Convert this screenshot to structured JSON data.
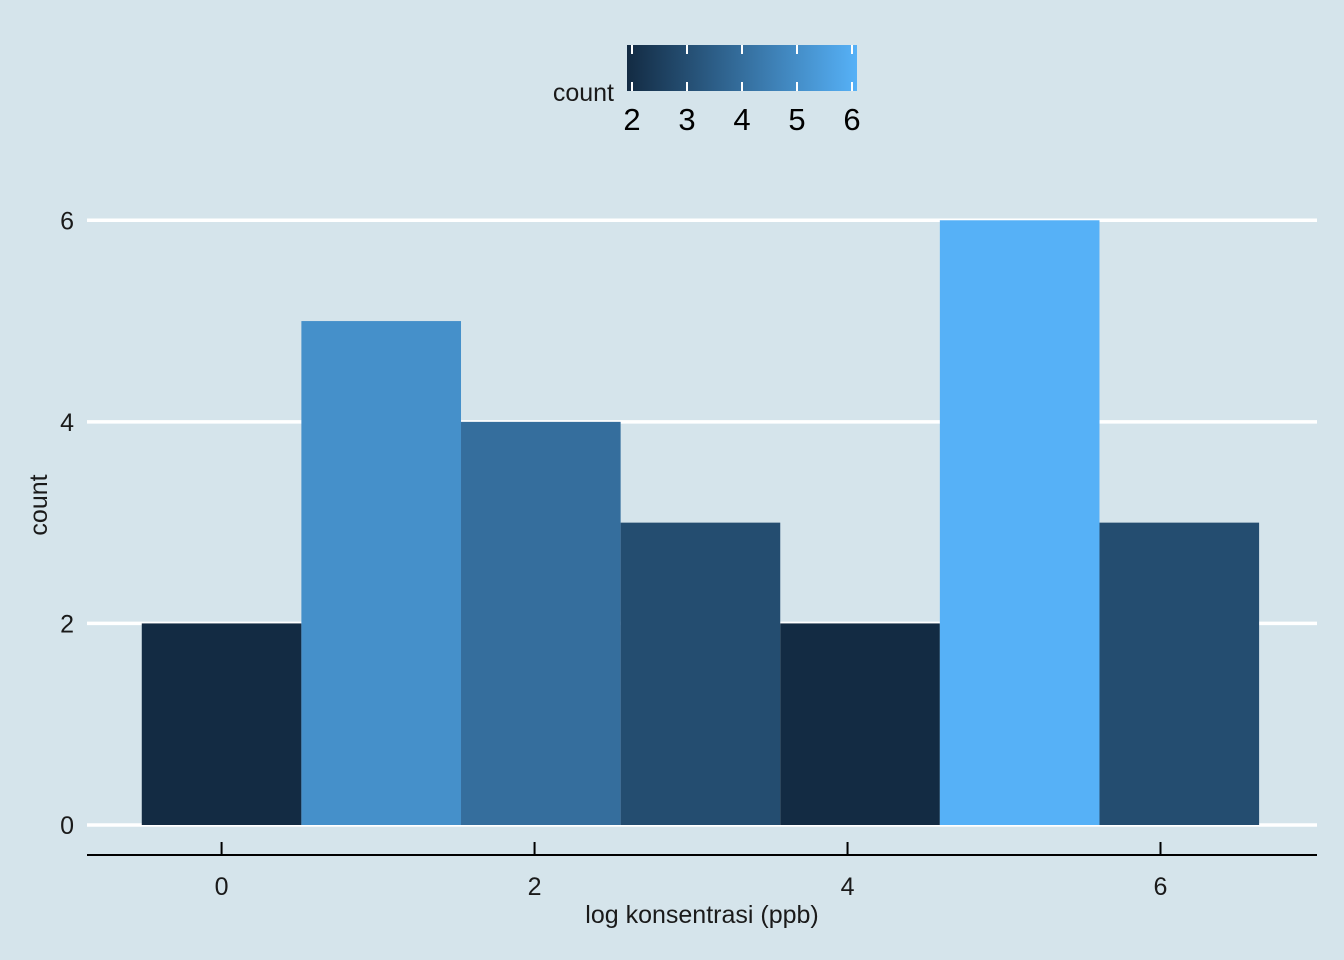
{
  "chart_data": {
    "type": "bar",
    "title": "",
    "xlabel": "log konsentrasi (ppb)",
    "ylabel": "count",
    "bin_width": 1.02,
    "bins": [
      {
        "center": 0.0,
        "count": 2
      },
      {
        "center": 1.02,
        "count": 5
      },
      {
        "center": 2.04,
        "count": 4
      },
      {
        "center": 3.06,
        "count": 3
      },
      {
        "center": 4.08,
        "count": 2
      },
      {
        "center": 5.1,
        "count": 6
      },
      {
        "center": 6.12,
        "count": 3
      }
    ],
    "xlim": [
      -0.86,
      7.0
    ],
    "ylim": [
      0,
      6.35
    ],
    "x_ticks": [
      0,
      2,
      4,
      6
    ],
    "y_ticks": [
      0,
      2,
      4,
      6
    ],
    "grid": "horizontal",
    "legend": {
      "title": "count",
      "position": "top",
      "type": "colorbar",
      "range": [
        2,
        6
      ],
      "ticks": [
        2,
        3,
        4,
        5,
        6
      ],
      "colors": {
        "low": "#132b43",
        "high": "#56b1f7"
      }
    },
    "colors": {
      "background": "#d5e4eb",
      "grid": "#ffffff",
      "axis": "#000000"
    }
  }
}
